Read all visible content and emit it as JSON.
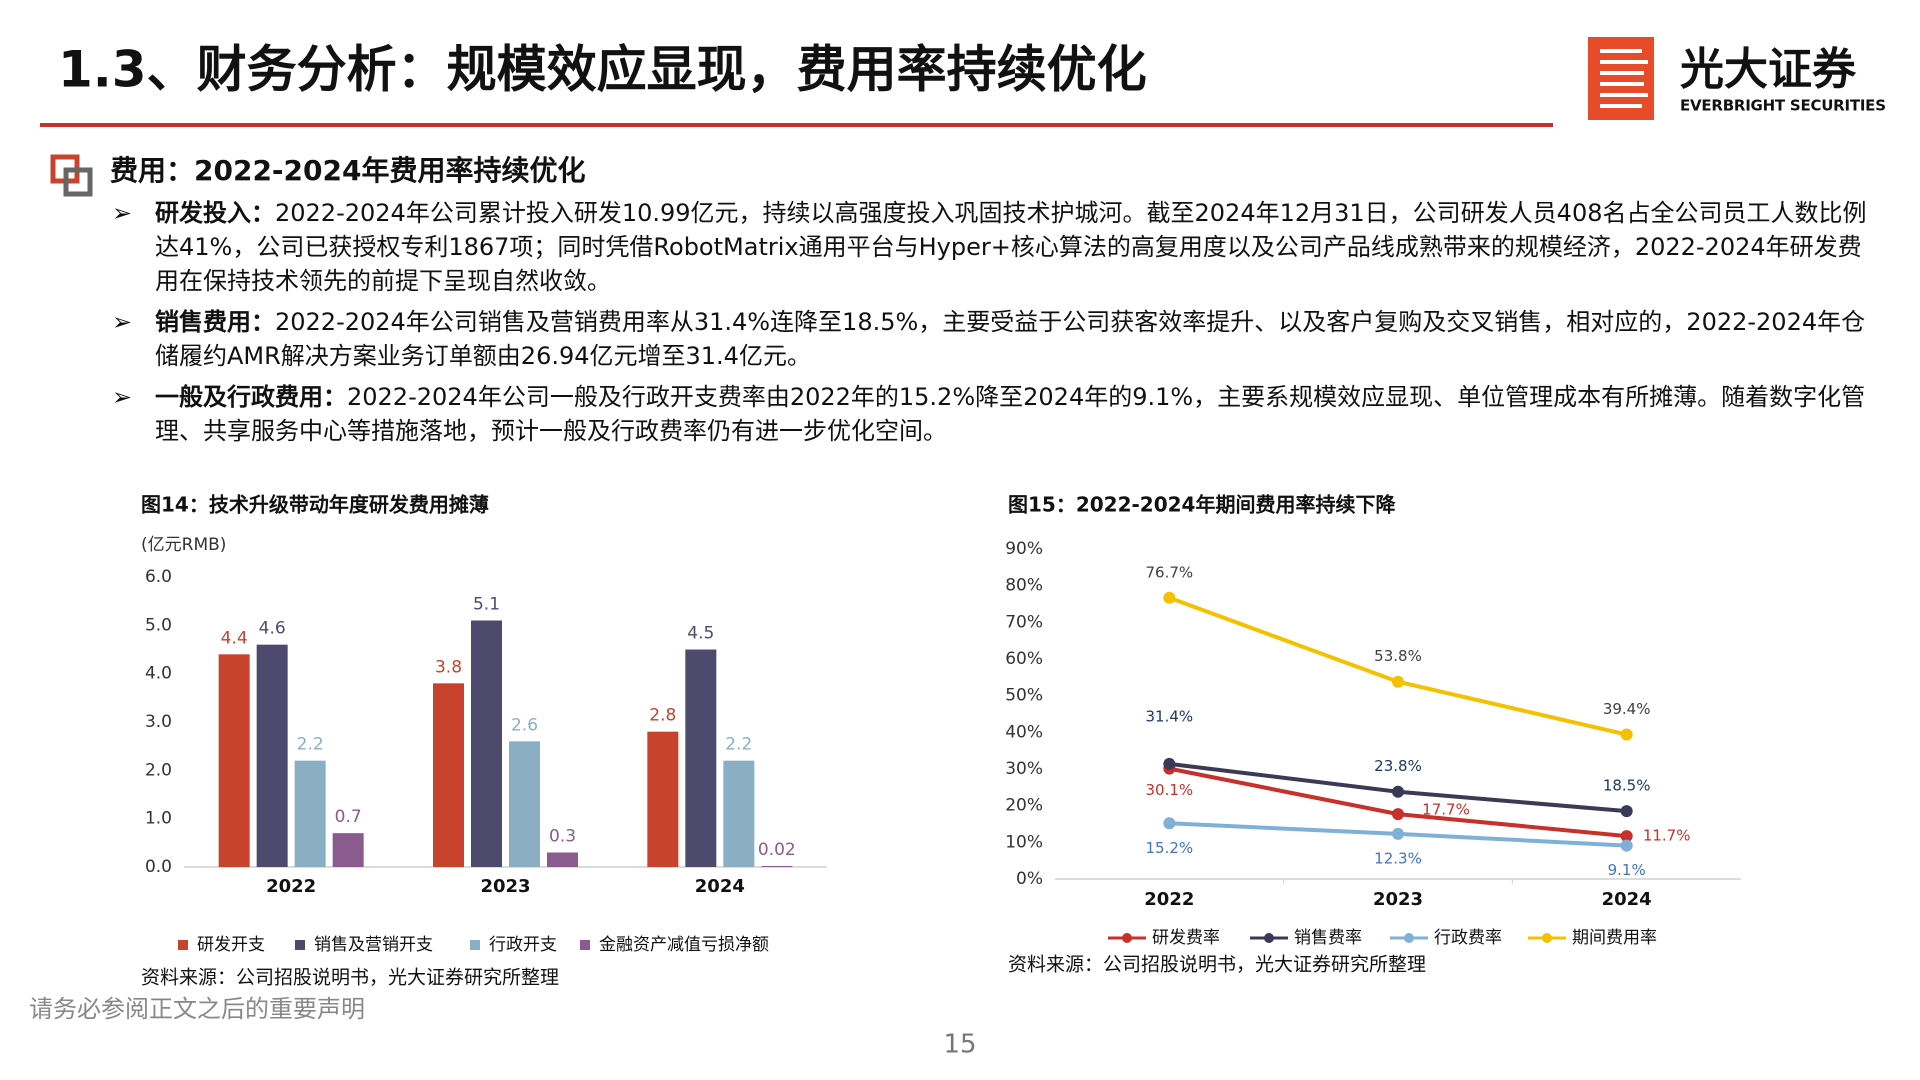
{
  "header": {
    "title": "1.3、财务分析：规模效应显现，费用率持续优化",
    "logo_cn": "光大证券",
    "logo_en": "EVERBRIGHT SECURITIES"
  },
  "section": {
    "title": "费用：2022-2024年费用率持续优化"
  },
  "bullets": [
    {
      "label": "研发投入：",
      "text": "2022-2024年公司累计投入研发10.99亿元，持续以高强度投入巩固技术护城河。截至2024年12月31日，公司研发人员408名占全公司员工人数比例达41%，公司已获授权专利1867项；同时凭借RobotMatrix通用平台与Hyper+核心算法的高复用度以及公司产品线成熟带来的规模经济，2022-2024年研发费用在保持技术领先的前提下呈现自然收敛。"
    },
    {
      "label": "销售费用：",
      "text": "2022-2024年公司销售及营销费用率从31.4%连降至18.5%，主要受益于公司获客效率提升、以及客户复购及交叉销售，相对应的，2022-2024年仓储履约AMR解决方案业务订单额由26.94亿元增至31.4亿元。"
    },
    {
      "label": "一般及行政费用：",
      "text": "2022-2024年公司一般及行政开支费率由2022年的15.2%降至2024年的9.1%，主要系规模效应显现、单位管理成本有所摊薄。随着数字化管理、共享服务中心等措施落地，预计一般及行政费率仍有进一步优化空间。"
    }
  ],
  "chart_data": [
    {
      "type": "bar",
      "title": "图14：技术升级带动年度研发费用摊薄",
      "y_unit": "(亿元RMB)",
      "source": "资料来源：公司招股说明书，光大证券研究所整理",
      "categories": [
        "2022",
        "2023",
        "2024"
      ],
      "ylim": [
        0,
        6
      ],
      "yticks": [
        {
          "value": 0,
          "label": "0.0"
        },
        {
          "value": 1,
          "label": "1.0"
        },
        {
          "value": 2,
          "label": "2.0"
        },
        {
          "value": 3,
          "label": "3.0"
        },
        {
          "value": 4,
          "label": "4.0"
        },
        {
          "value": 5,
          "label": "5.0"
        },
        {
          "value": 6,
          "label": "6.0"
        }
      ],
      "series": [
        {
          "name": "研发开支",
          "color": "#c8432b",
          "values": [
            4.4,
            3.8,
            2.8
          ]
        },
        {
          "name": "销售及营销开支",
          "color": "#4e4a6e",
          "values": [
            4.6,
            5.1,
            4.5
          ]
        },
        {
          "name": "行政开支",
          "color": "#8aafc4",
          "values": [
            2.2,
            2.6,
            2.2
          ]
        },
        {
          "name": "金融资产减值亏损净额",
          "color": "#8b5a8f",
          "values": [
            0.7,
            0.3,
            0.02
          ]
        }
      ]
    },
    {
      "type": "line",
      "title": "图15：2022-2024年期间费用率持续下降",
      "source": "资料来源：公司招股说明书，光大证券研究所整理",
      "categories": [
        "2022",
        "2023",
        "2024"
      ],
      "ylim": [
        0,
        90
      ],
      "yticks": [
        {
          "value": 0,
          "label": "0%"
        },
        {
          "value": 10,
          "label": "10%"
        },
        {
          "value": 20,
          "label": "20%"
        },
        {
          "value": 30,
          "label": "30%"
        },
        {
          "value": 40,
          "label": "40%"
        },
        {
          "value": 50,
          "label": "50%"
        },
        {
          "value": 60,
          "label": "60%"
        },
        {
          "value": 70,
          "label": "70%"
        },
        {
          "value": 80,
          "label": "80%"
        },
        {
          "value": 90,
          "label": "90%"
        }
      ],
      "series": [
        {
          "name": "研发费率",
          "color": "#c8302a",
          "values": [
            30.1,
            17.7,
            11.7
          ],
          "value_labels": [
            "30.1%",
            "17.7%",
            "11.7%"
          ]
        },
        {
          "name": "销售费率",
          "color": "#3b3a55",
          "values": [
            31.4,
            23.8,
            18.5
          ],
          "value_labels": [
            "31.4%",
            "23.8%",
            "18.5%"
          ]
        },
        {
          "name": "行政费率",
          "color": "#7fb0d8",
          "values": [
            15.2,
            12.3,
            9.1
          ],
          "value_labels": [
            "15.2%",
            "12.3%",
            "9.1%"
          ]
        },
        {
          "name": "期间费用率",
          "color": "#f5c000",
          "values": [
            76.7,
            53.8,
            39.4
          ],
          "value_labels": [
            "76.7%",
            "53.8%",
            "39.4%"
          ]
        }
      ]
    }
  ],
  "footer": {
    "disclaimer": "请务必参阅正文之后的重要声明",
    "page": "15"
  }
}
